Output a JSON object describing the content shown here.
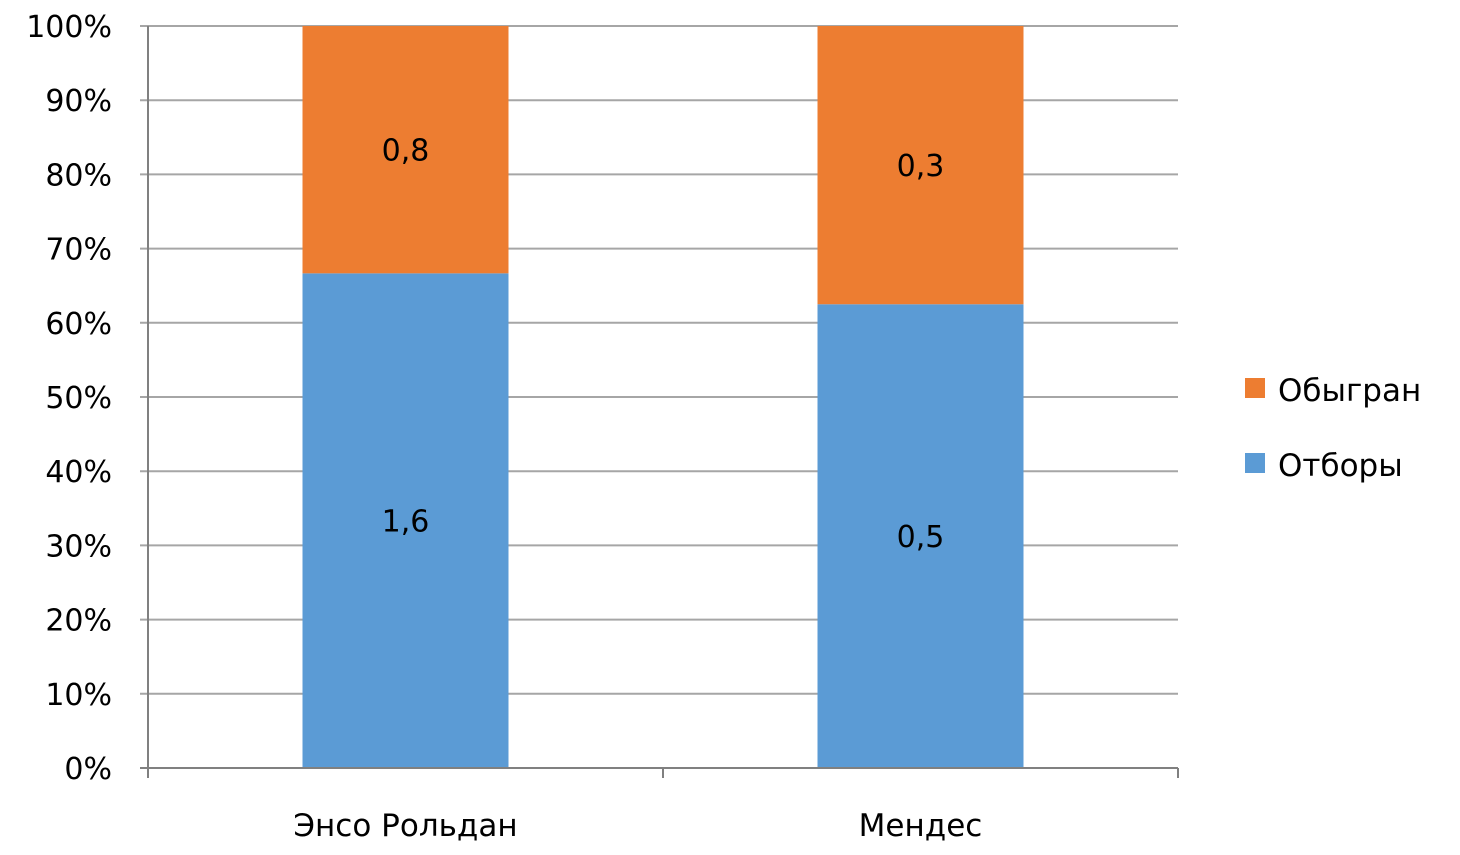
{
  "chart_data": {
    "type": "bar",
    "stacked": true,
    "normalized": true,
    "categories": [
      "Энсо Рольдан",
      "Мендес"
    ],
    "series": [
      {
        "name": "Отборы",
        "values": [
          1.6,
          0.5
        ],
        "labels": [
          "1,6",
          "0,5"
        ],
        "color": "#5b9bd5"
      },
      {
        "name": "Обыгран",
        "values": [
          0.8,
          0.3
        ],
        "labels": [
          "0,8",
          "0,3"
        ],
        "color": "#ed7d31"
      }
    ],
    "yticks": [
      "0%",
      "10%",
      "20%",
      "30%",
      "40%",
      "50%",
      "60%",
      "70%",
      "80%",
      "90%",
      "100%"
    ],
    "ylim": [
      0,
      100
    ],
    "grid": true,
    "legend": "right",
    "legend_order": [
      "Обыгран",
      "Отборы"
    ],
    "gridline_color": "#a6a6a6",
    "axis_color": "#808080"
  }
}
